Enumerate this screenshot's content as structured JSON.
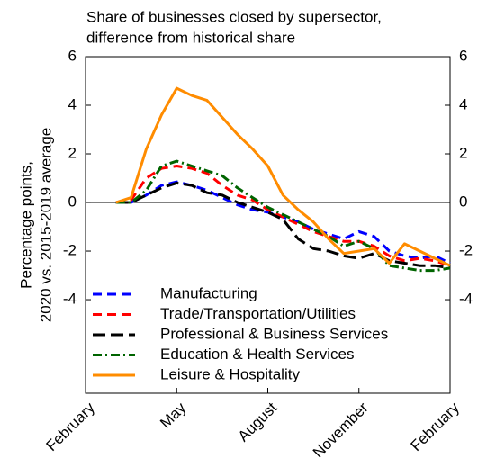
{
  "chart_data": {
    "type": "line",
    "title": "Share of businesses closed by supersector,",
    "subtitle": "difference from historical share",
    "ylabel": [
      "Percentage points,",
      "2020 vs. 2015-2019 average"
    ],
    "categories": [
      "February",
      null,
      null,
      null,
      null,
      null,
      "May",
      null,
      null,
      null,
      null,
      null,
      "August",
      null,
      null,
      null,
      null,
      null,
      "November",
      null,
      null,
      null,
      null,
      null,
      "February"
    ],
    "ylim": [
      -7.85,
      6
    ],
    "yticks": [
      -4,
      -2,
      0,
      2,
      4,
      6
    ],
    "y2lim": [
      -7.85,
      6
    ],
    "y2ticks": [
      -4,
      -2,
      0,
      2,
      4,
      6
    ],
    "zero_line": true,
    "legend": "lower left",
    "series": [
      {
        "name": "Manufacturing",
        "color": "#0000ff",
        "dash": "10,6",
        "values": [
          null,
          null,
          0,
          0,
          0.3,
          0.7,
          0.85,
          0.7,
          0.5,
          0.2,
          -0.1,
          -0.3,
          -0.4,
          -0.6,
          -0.8,
          -1.1,
          -1.3,
          -1.5,
          -1.2,
          -1.4,
          -2.0,
          -2.2,
          -2.3,
          -2.2,
          -2.5
        ]
      },
      {
        "name": "Trade/Transportation/Utilities",
        "color": "#ff0000",
        "dash": "10,6",
        "values": [
          null,
          null,
          0,
          0.1,
          1.0,
          1.4,
          1.5,
          1.4,
          1.2,
          0.7,
          0.3,
          0.1,
          -0.3,
          -0.6,
          -0.9,
          -1.2,
          -1.4,
          -1.6,
          -1.6,
          -1.8,
          -2.2,
          -2.4,
          -2.3,
          -2.4,
          -2.6
        ]
      },
      {
        "name": "Professional & Business Services",
        "color": "#000000",
        "dash": "14,6",
        "values": [
          null,
          null,
          0,
          0,
          0.3,
          0.6,
          0.8,
          0.7,
          0.4,
          0.3,
          0,
          -0.2,
          -0.4,
          -0.7,
          -1.5,
          -1.9,
          -2.0,
          -2.2,
          -2.3,
          -2.1,
          -2.4,
          -2.5,
          -2.6,
          -2.6,
          -2.7
        ]
      },
      {
        "name": "Education & Health Services",
        "color": "#006400",
        "dash": "10,4,2,4",
        "values": [
          null,
          null,
          0,
          0,
          0.5,
          1.5,
          1.7,
          1.5,
          1.3,
          1.1,
          0.6,
          0.2,
          -0.2,
          -0.5,
          -0.8,
          -1.1,
          -1.4,
          -1.8,
          -1.6,
          -1.9,
          -2.6,
          -2.7,
          -2.8,
          -2.8,
          -2.7
        ]
      },
      {
        "name": "Leisure & Hospitality",
        "color": "#ff8c00",
        "dash": "none",
        "values": [
          null,
          null,
          0,
          0.2,
          2.2,
          3.6,
          4.7,
          4.4,
          4.2,
          3.5,
          2.8,
          2.2,
          1.5,
          0.3,
          -0.3,
          -0.8,
          -1.5,
          -2.1,
          -2.0,
          -1.9,
          -2.5,
          -1.7,
          -2.0,
          -2.3,
          -2.6
        ]
      }
    ]
  }
}
